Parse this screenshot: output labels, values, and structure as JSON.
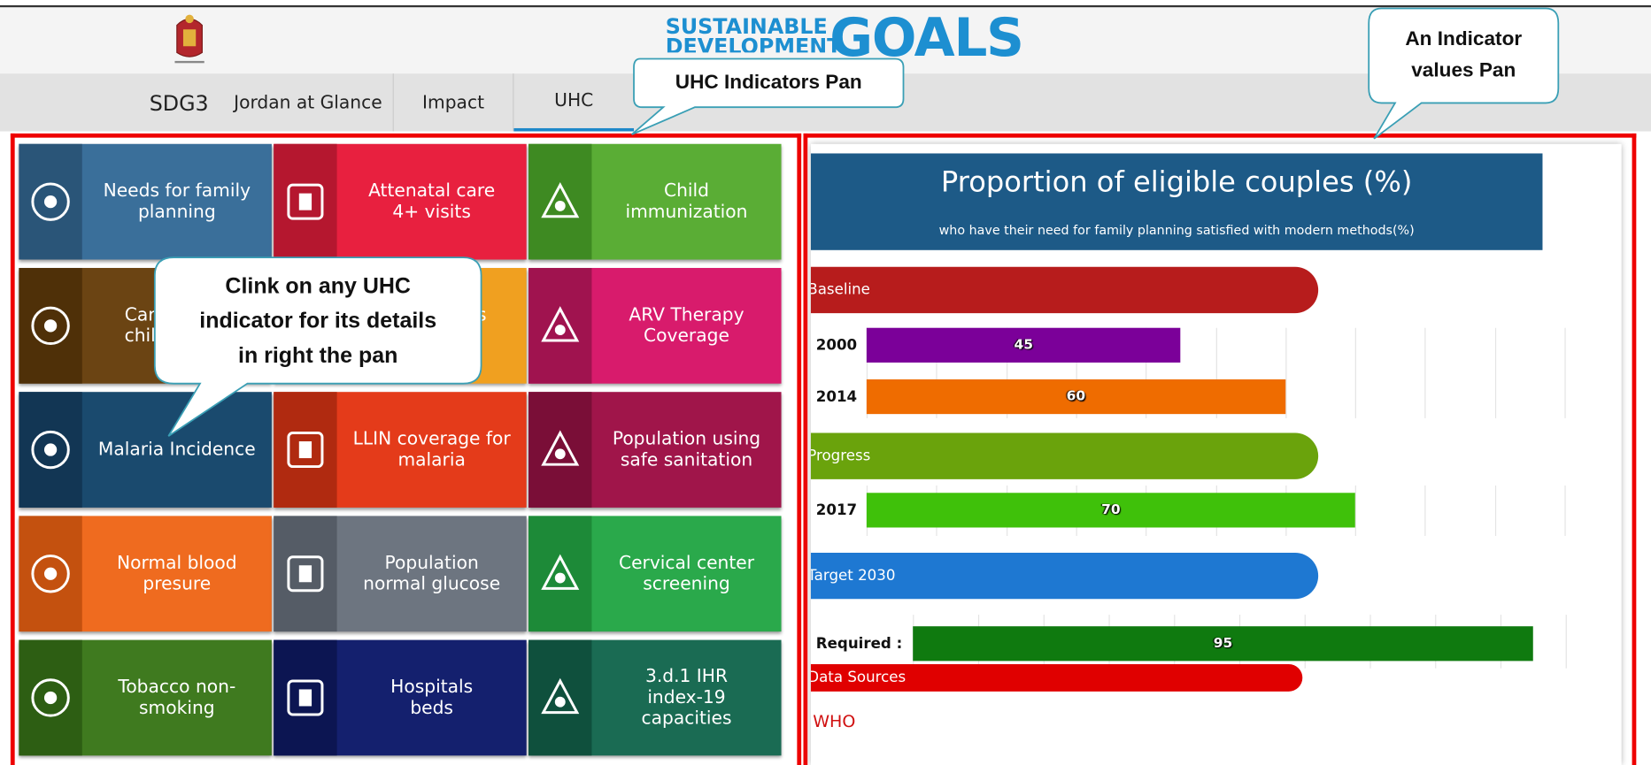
{
  "header": {
    "logo_line1": "SUSTAINABLE",
    "logo_line2": "DEVELOPMENT",
    "logo_big": "GOALS"
  },
  "nav": [
    "SDG3",
    "Jordan at Glance",
    "Impact",
    "UHC"
  ],
  "tiles": [
    {
      "label": "Needs for family\nplanning",
      "color": "#3a6f9a",
      "icon_color": "#2a5578"
    },
    {
      "label": "Attenatal care\n4+ visits",
      "color": "#e8203f",
      "icon_color": "#b5172f"
    },
    {
      "label": "Child\nimmunization",
      "color": "#5aad35",
      "icon_color": "#3e8a22"
    },
    {
      "label": "Care of sick\nchild health",
      "color": "#6b4413",
      "icon_color": "#4f3008"
    },
    {
      "label": "Tuberculosis\ncases",
      "color": "#f0a020",
      "icon_color": "#c98310"
    },
    {
      "label": "ARV Therapy\nCoverage",
      "color": "#d81b6c",
      "icon_color": "#a0134f"
    },
    {
      "label": "Malaria Incidence",
      "color": "#1a4a6e",
      "icon_color": "#123654"
    },
    {
      "label": "LLIN coverage for\nmalaria",
      "color": "#e43b1a",
      "icon_color": "#b02a10"
    },
    {
      "label": "Population using\nsafe sanitation",
      "color": "#a0154a",
      "icon_color": "#7a0e37"
    },
    {
      "label": "Normal blood\npresure",
      "color": "#ef6b1f",
      "icon_color": "#c4510f"
    },
    {
      "label": "Population\nnormal glucose",
      "color": "#6d7580",
      "icon_color": "#555c66"
    },
    {
      "label": "Cervical center\nscreening",
      "color": "#2aa94b",
      "icon_color": "#1d8a38"
    },
    {
      "label": "Tobacco non-\nsmoking",
      "color": "#3f7a1f",
      "icon_color": "#2d5e13"
    },
    {
      "label": "Hospitals\nbeds",
      "color": "#14206e",
      "icon_color": "#0c1552"
    },
    {
      "label": "3.d.1 IHR\nindex-19\ncapacities",
      "color": "#1a6b53",
      "icon_color": "#0f503d"
    }
  ],
  "callouts": {
    "uhc_pan": "UHC Indicators Pan",
    "values_pan": "An Indicator\nvalues Pan",
    "hint": "Clink on any UHC\nindicator for its details\nin right the pan"
  },
  "panel": {
    "title": "Proportion of eligible couples (%)",
    "subtitle": "who have their need for family planning satisfied with modern methods(%)",
    "xlim": [
      0,
      100
    ],
    "xticks": [
      0,
      10,
      20,
      30,
      40,
      50,
      60,
      70,
      80,
      90,
      100
    ],
    "sections": [
      {
        "name": "Baseline",
        "color": "#b71c1c",
        "rows": [
          {
            "label": "2000",
            "value": 45,
            "color": "#7b0099"
          },
          {
            "label": "2014",
            "value": 60,
            "color": "#ef6c00"
          }
        ]
      },
      {
        "name": "Progress",
        "color": "#6aa30c",
        "rows": [
          {
            "label": "2017",
            "value": 70,
            "color": "#3fc10a"
          }
        ]
      },
      {
        "name": "Target 2030",
        "color": "#1e78d2",
        "rows": [
          {
            "label": "Required :",
            "value": 95,
            "color": "#0f7a0f"
          }
        ]
      }
    ],
    "sources_label": "Data Sources",
    "sources": [
      "WHO"
    ]
  }
}
